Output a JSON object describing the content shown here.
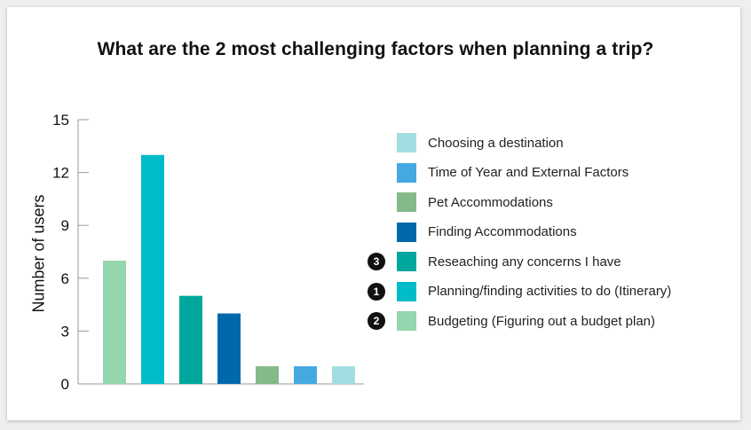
{
  "chart_data": {
    "type": "bar",
    "title": "What are the 2 most challenging factors when planning a trip?",
    "ylabel": "Number of users",
    "xlabel": "",
    "ylim": [
      0,
      15
    ],
    "yticks": [
      0,
      3,
      6,
      9,
      12,
      15
    ],
    "grid": false,
    "legend_position": "right",
    "categories": [
      "Budgeting (Figuring out a budget plan)",
      "Planning/finding activities to do (Itinerary)",
      "Reseaching any concerns I have",
      "Finding Accommodations",
      "Pet Accommodations",
      "Time of Year and External Factors",
      "Choosing a destination"
    ],
    "values": [
      7,
      13,
      5,
      4,
      1,
      1,
      1
    ],
    "colors": [
      "#94d6ad",
      "#00bcc8",
      "#00a79d",
      "#0069ab",
      "#84b98a",
      "#45a9e1",
      "#a2dde2"
    ]
  },
  "legend": [
    {
      "label": "Choosing a destination",
      "color": "#a2dde2",
      "rank": ""
    },
    {
      "label": "Time of Year and External Factors",
      "color": "#45a9e1",
      "rank": ""
    },
    {
      "label": "Pet Accommodations",
      "color": "#84b98a",
      "rank": ""
    },
    {
      "label": "Finding Accommodations",
      "color": "#0069ab",
      "rank": ""
    },
    {
      "label": "Reseaching any concerns I have",
      "color": "#00a79d",
      "rank": "3"
    },
    {
      "label": "Planning/finding activities to do (Itinerary)",
      "color": "#00bcc8",
      "rank": "1"
    },
    {
      "label": "Budgeting (Figuring out a budget plan)",
      "color": "#94d6ad",
      "rank": "2"
    }
  ]
}
